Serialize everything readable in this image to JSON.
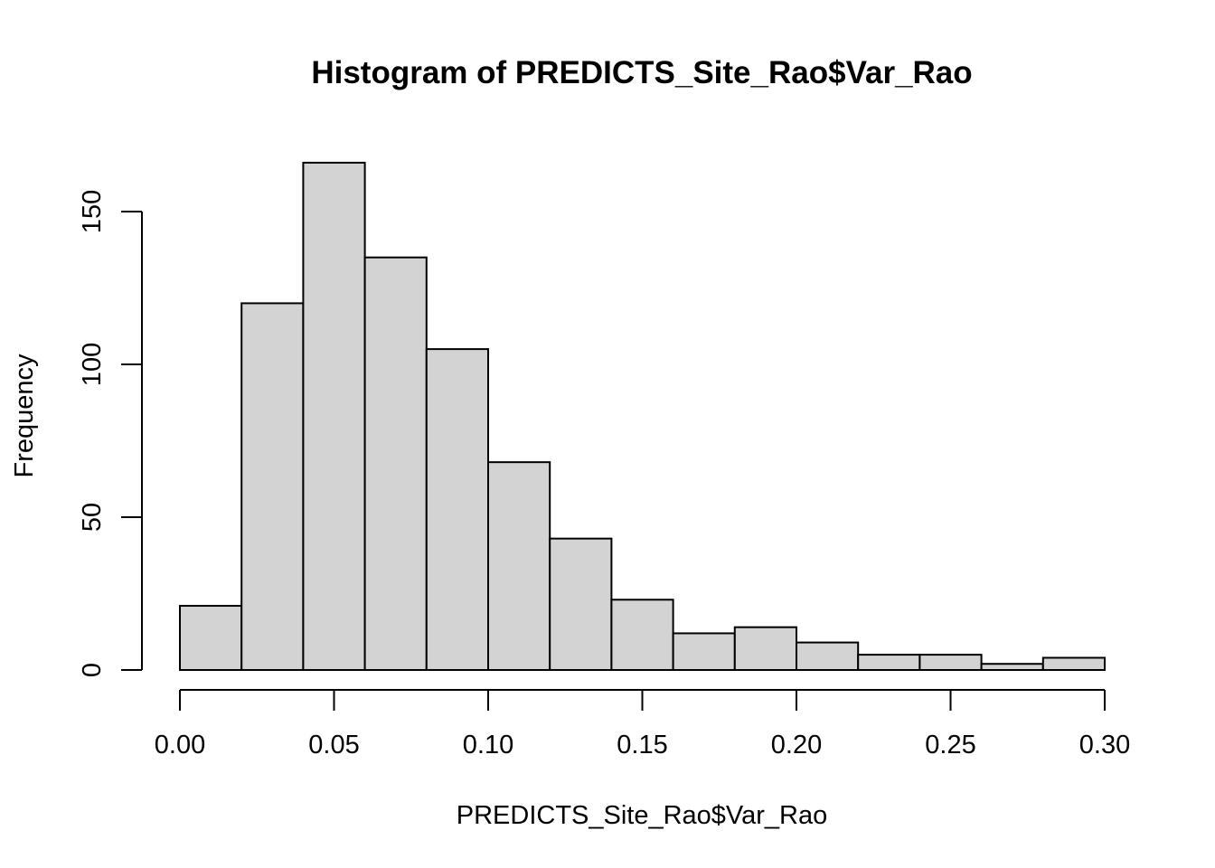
{
  "chart_data": {
    "type": "bar",
    "title": "Histogram of PREDICTS_Site_Rao$Var_Rao",
    "xlabel": "PREDICTS_Site_Rao$Var_Rao",
    "ylabel": "Frequency",
    "bin_edges": [
      0.0,
      0.02,
      0.04,
      0.06,
      0.08,
      0.1,
      0.12,
      0.14,
      0.16,
      0.18,
      0.2,
      0.22,
      0.24,
      0.26,
      0.28,
      0.3
    ],
    "values": [
      21,
      120,
      166,
      135,
      105,
      68,
      43,
      23,
      12,
      14,
      9,
      5,
      5,
      2,
      4
    ],
    "xlim": [
      0,
      0.3
    ],
    "ylim": [
      0,
      170
    ],
    "x_ticks": [
      0.0,
      0.05,
      0.1,
      0.15,
      0.2,
      0.25,
      0.3
    ],
    "x_tick_labels": [
      "0.00",
      "0.05",
      "0.10",
      "0.15",
      "0.20",
      "0.25",
      "0.30"
    ],
    "y_ticks": [
      0,
      50,
      100,
      150
    ],
    "y_tick_labels": [
      "0",
      "50",
      "100",
      "150"
    ],
    "bar_color": "#d3d3d3",
    "edge_color": "#000000",
    "grid": false,
    "legend": "none"
  }
}
